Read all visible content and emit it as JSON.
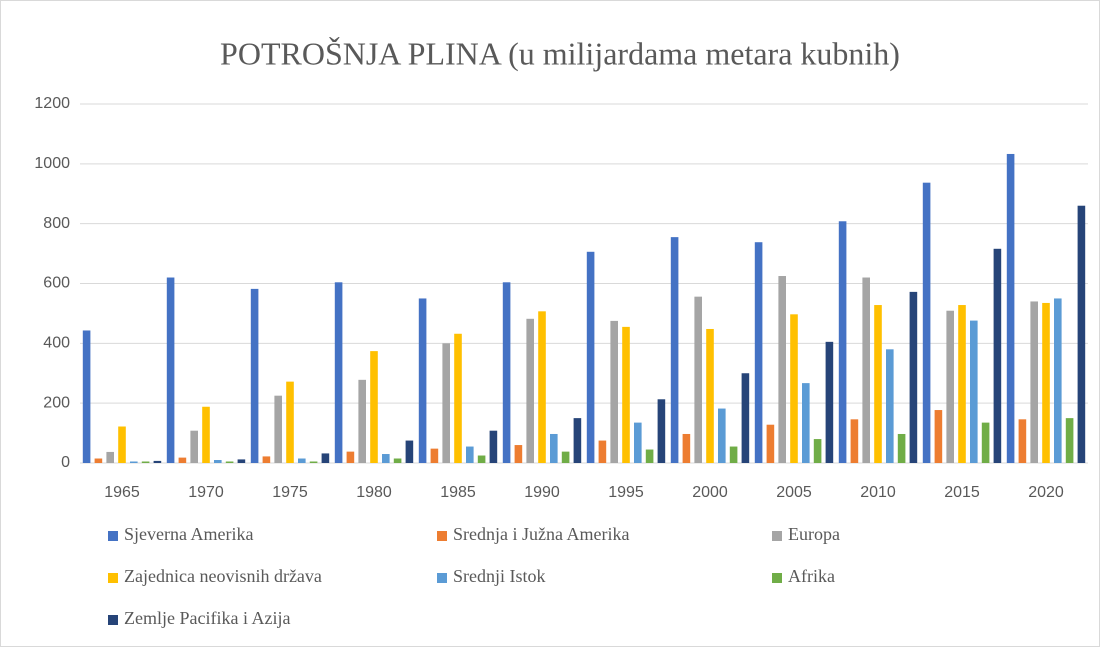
{
  "chart_data": {
    "type": "bar",
    "title": "POTROŠNJA PLINA (u milijardama metara kubnih)",
    "categories": [
      "1965",
      "1970",
      "1975",
      "1980",
      "1985",
      "1990",
      "1995",
      "2000",
      "2005",
      "2010",
      "2015",
      "2020"
    ],
    "series": [
      {
        "name": "Sjeverna Amerika",
        "color": "#4472c4",
        "values": [
          443,
          620,
          582,
          604,
          550,
          604,
          706,
          755,
          738,
          808,
          937,
          1033
        ]
      },
      {
        "name": "Srednja i Južna Amerika",
        "color": "#ed7d31",
        "values": [
          15,
          18,
          22,
          38,
          48,
          60,
          75,
          97,
          128,
          146,
          177,
          146
        ]
      },
      {
        "name": "Europa",
        "color": "#a5a5a5",
        "values": [
          37,
          108,
          225,
          278,
          400,
          482,
          475,
          556,
          625,
          620,
          509,
          540
        ]
      },
      {
        "name": "Zajednica neovisnih država",
        "color": "#ffc000",
        "values": [
          122,
          188,
          272,
          374,
          432,
          507,
          455,
          448,
          497,
          528,
          528,
          535
        ]
      },
      {
        "name": "Srednji Istok",
        "color": "#5b9bd5",
        "values": [
          5,
          10,
          15,
          30,
          55,
          97,
          135,
          182,
          267,
          380,
          476,
          550
        ]
      },
      {
        "name": "Afrika",
        "color": "#70ad47",
        "values": [
          5,
          5,
          5,
          15,
          25,
          38,
          45,
          55,
          80,
          97,
          135,
          150
        ]
      },
      {
        "name": "Zemlje Pacifika i Azija",
        "color": "#264478",
        "values": [
          7,
          12,
          32,
          75,
          108,
          150,
          213,
          300,
          405,
          572,
          716,
          860
        ]
      }
    ],
    "ylim": [
      0,
      1200
    ],
    "yticks": [
      0,
      200,
      400,
      600,
      800,
      1000,
      1200
    ],
    "grid": true,
    "legend": "bottom"
  }
}
